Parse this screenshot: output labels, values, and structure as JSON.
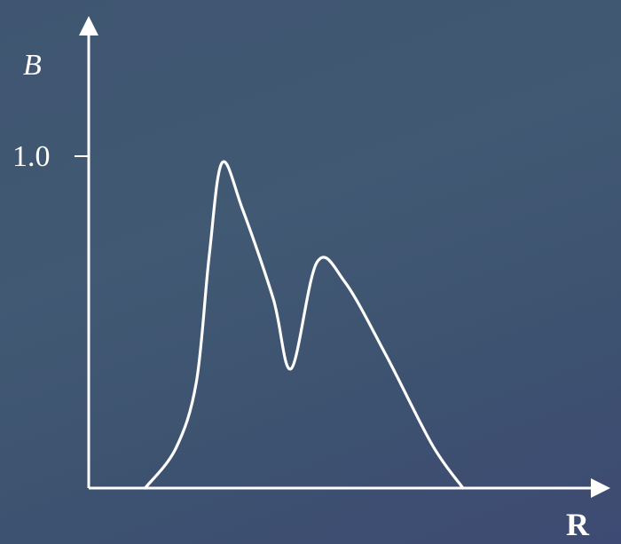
{
  "chart_data": {
    "type": "line",
    "title": "",
    "xlabel": "R",
    "ylabel": "B",
    "xlim": [
      0,
      1
    ],
    "ylim": [
      0,
      1.1
    ],
    "grid": false,
    "y_tick_labels": [
      "1.0"
    ],
    "y_ticks": [
      1.0
    ],
    "series": [
      {
        "points": [
          [
            0.11,
            0.0
          ],
          [
            0.17,
            0.12
          ],
          [
            0.21,
            0.32
          ],
          [
            0.235,
            0.7
          ],
          [
            0.26,
            0.98
          ],
          [
            0.3,
            0.84
          ],
          [
            0.36,
            0.57
          ],
          [
            0.395,
            0.36
          ],
          [
            0.445,
            0.68
          ],
          [
            0.5,
            0.62
          ],
          [
            0.58,
            0.4
          ],
          [
            0.67,
            0.13
          ],
          [
            0.73,
            0.0
          ]
        ]
      }
    ]
  }
}
